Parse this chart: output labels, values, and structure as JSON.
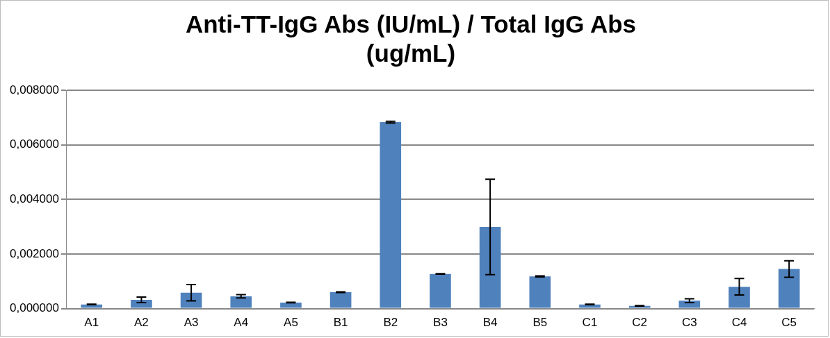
{
  "chart_data": {
    "type": "bar",
    "title": [
      "Anti-TT-IgG Abs (IU/mL) / Total IgG Abs",
      "(ug/mL)"
    ],
    "categories": [
      "A1",
      "A2",
      "A3",
      "A4",
      "A5",
      "B1",
      "B2",
      "B3",
      "B4",
      "B5",
      "C1",
      "C2",
      "C3",
      "C4",
      "C5"
    ],
    "values": [
      0.00015,
      0.00032,
      0.00058,
      0.00045,
      0.00022,
      0.0006,
      0.00683,
      0.00127,
      0.00299,
      0.00118,
      0.00015,
      0.0001,
      0.00029,
      0.0008,
      0.00145
    ],
    "errors": [
      1e-05,
      0.0001,
      0.0003,
      6e-05,
      1e-05,
      1e-05,
      3e-05,
      1e-05,
      0.00175,
      2e-05,
      1e-05,
      1e-05,
      7e-05,
      0.0003,
      0.0003
    ],
    "color": "#4f81bd",
    "ylim": [
      0,
      0.008
    ],
    "yticks": [
      {
        "value": 0,
        "label": "0,000000"
      },
      {
        "value": 0.002,
        "label": "0,002000"
      },
      {
        "value": 0.004,
        "label": "0,004000"
      },
      {
        "value": 0.006,
        "label": "0,006000"
      },
      {
        "value": 0.008,
        "label": "0,008000"
      }
    ],
    "grid": "y",
    "legend": false
  }
}
